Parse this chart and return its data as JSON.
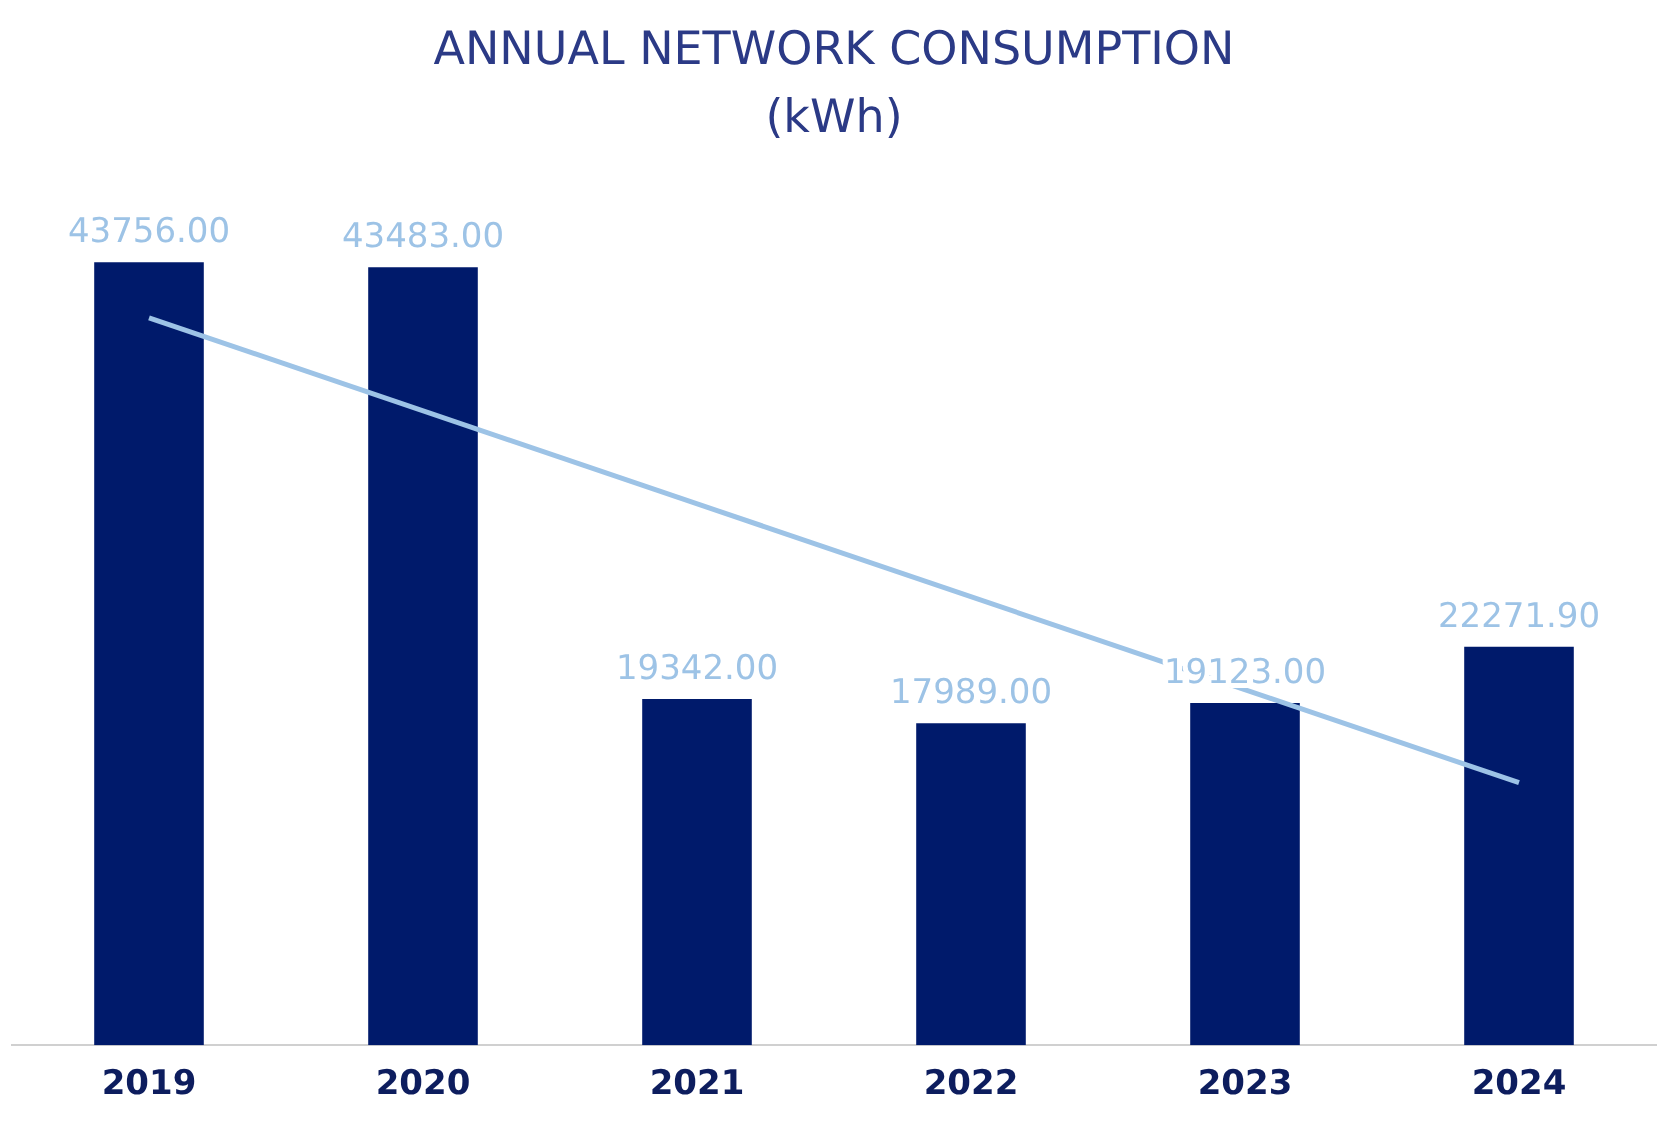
{
  "chart_data": {
    "type": "bar",
    "title": "ANNUAL NETWORK CONSUMPTION (kWh)",
    "categories": [
      "2019",
      "2020",
      "2021",
      "2022",
      "2023",
      "2024"
    ],
    "series": [
      {
        "color": "#001a6b",
        "values": [
          43756.0,
          43483.0,
          19342.0,
          17989.0,
          19123.0,
          22271.9
        ],
        "value_labels": [
          "43756.00",
          "43483.00",
          "19342.00",
          "17989.00",
          "19123.00",
          "22271.90"
        ]
      },
      {
        "type": "line",
        "color": "#9dc3e6",
        "values": [
          40650,
          null,
          null,
          null,
          null,
          14671
        ],
        "marker": "none"
      }
    ],
    "grid": false,
    "legend": false,
    "tick_labels": "x"
  }
}
